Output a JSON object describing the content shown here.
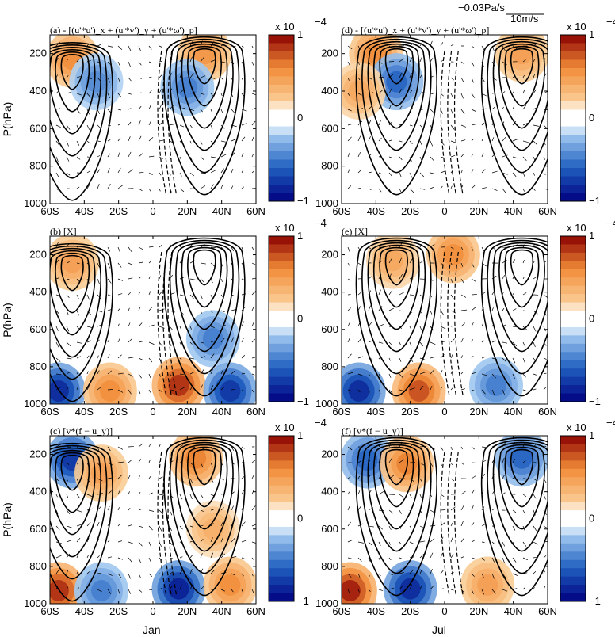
{
  "figure": {
    "y_axis_label": "P(hPa)",
    "colorbar_exponent": "x 10",
    "colorbar_exponent_power": "−4",
    "colorbar_ticks": [
      "1",
      "0",
      "−1"
    ],
    "x_ticks": [
      "60S",
      "40S",
      "20S",
      "0",
      "20N",
      "40N",
      "60N"
    ],
    "y_ticks": [
      "200",
      "400",
      "600",
      "800",
      "1000"
    ],
    "column_labels": [
      "Jan",
      "Jul"
    ],
    "reference_vectors": [
      "−0.03Pa/s",
      "10m/s"
    ],
    "colors": {
      "red": "#8b0000",
      "orange": "#f28c38",
      "white": "#ffffff",
      "blue": "#1f5fbf",
      "navy": "#00007f"
    }
  },
  "chart_data": [
    {
      "id": "a",
      "type": "heatmap",
      "title": "(a) - [(u'*u')_x + (u'*v')_y + (u'*ω')_p]",
      "month": "Jan",
      "xlim": [
        -60,
        60
      ],
      "ylim": [
        1000,
        100
      ],
      "clim": [
        -1,
        1
      ],
      "cells": [
        {
          "lat": -47,
          "p": 230,
          "v": 0.6
        },
        {
          "lat": -33,
          "p": 350,
          "v": -0.45
        },
        {
          "lat": 30,
          "p": 200,
          "v": 0.55
        },
        {
          "lat": 20,
          "p": 380,
          "v": -0.5
        }
      ],
      "jet_centers": [
        {
          "lat": -47,
          "p": 230
        },
        {
          "lat": 30,
          "p": 200
        }
      ]
    },
    {
      "id": "b",
      "type": "heatmap",
      "title": "(b) [X]",
      "month": "Jan",
      "xlim": [
        -60,
        60
      ],
      "ylim": [
        1000,
        100
      ],
      "clim": [
        -1,
        1
      ],
      "cells": [
        {
          "lat": -47,
          "p": 240,
          "v": 0.5
        },
        {
          "lat": 35,
          "p": 650,
          "v": -0.5
        },
        {
          "lat": -55,
          "p": 930,
          "v": -0.85
        },
        {
          "lat": -25,
          "p": 930,
          "v": 0.6
        },
        {
          "lat": 15,
          "p": 900,
          "v": 0.9
        },
        {
          "lat": 45,
          "p": 930,
          "v": -0.8
        }
      ],
      "jet_centers": [
        {
          "lat": -47,
          "p": 230
        },
        {
          "lat": 30,
          "p": 200
        }
      ]
    },
    {
      "id": "c",
      "type": "heatmap",
      "title": "(c) [v̄*(f − ū_y)]",
      "month": "Jan",
      "xlim": [
        -60,
        60
      ],
      "ylim": [
        1000,
        100
      ],
      "clim": [
        -1,
        1
      ],
      "cells": [
        {
          "lat": -47,
          "p": 230,
          "v": -0.8
        },
        {
          "lat": -30,
          "p": 300,
          "v": 0.5
        },
        {
          "lat": 25,
          "p": 220,
          "v": 0.65
        },
        {
          "lat": 35,
          "p": 600,
          "v": 0.4
        },
        {
          "lat": -55,
          "p": 930,
          "v": 0.9
        },
        {
          "lat": -30,
          "p": 930,
          "v": -0.5
        },
        {
          "lat": 15,
          "p": 920,
          "v": -0.9
        },
        {
          "lat": 45,
          "p": 900,
          "v": 0.6
        }
      ],
      "jet_centers": [
        {
          "lat": -47,
          "p": 230
        },
        {
          "lat": 30,
          "p": 200
        }
      ]
    },
    {
      "id": "d",
      "type": "heatmap",
      "title": "(d) - [(u'*u')_x + (u'*v')_y + (u'*ω')_p]",
      "month": "Jul",
      "xlim": [
        -60,
        60
      ],
      "ylim": [
        1000,
        100
      ],
      "clim": [
        -1,
        1
      ],
      "cells": [
        {
          "lat": -40,
          "p": 200,
          "v": 0.6
        },
        {
          "lat": -28,
          "p": 350,
          "v": -0.6
        },
        {
          "lat": -50,
          "p": 400,
          "v": 0.45
        },
        {
          "lat": 45,
          "p": 200,
          "v": 0.5
        }
      ],
      "jet_centers": [
        {
          "lat": -28,
          "p": 200
        },
        {
          "lat": 45,
          "p": 200
        }
      ]
    },
    {
      "id": "e",
      "type": "heatmap",
      "title": "(e) [X]",
      "month": "Jul",
      "xlim": [
        -60,
        60
      ],
      "ylim": [
        1000,
        100
      ],
      "clim": [
        -1,
        1
      ],
      "cells": [
        {
          "lat": -30,
          "p": 230,
          "v": 0.45
        },
        {
          "lat": 5,
          "p": 200,
          "v": 0.6
        },
        {
          "lat": -50,
          "p": 930,
          "v": -0.85
        },
        {
          "lat": -15,
          "p": 930,
          "v": 0.8
        },
        {
          "lat": 30,
          "p": 900,
          "v": -0.5
        }
      ],
      "jet_centers": [
        {
          "lat": -28,
          "p": 200
        },
        {
          "lat": 45,
          "p": 200
        }
      ]
    },
    {
      "id": "f",
      "type": "heatmap",
      "title": "(f) [v̄*(f − ū_y)]",
      "month": "Jul",
      "xlim": [
        -60,
        60
      ],
      "ylim": [
        1000,
        100
      ],
      "clim": [
        -1,
        1
      ],
      "cells": [
        {
          "lat": -45,
          "p": 230,
          "v": -0.6
        },
        {
          "lat": -22,
          "p": 250,
          "v": 0.65
        },
        {
          "lat": 45,
          "p": 220,
          "v": -0.6
        },
        {
          "lat": -55,
          "p": 930,
          "v": 0.95
        },
        {
          "lat": -20,
          "p": 920,
          "v": -0.85
        },
        {
          "lat": 25,
          "p": 900,
          "v": 0.5
        }
      ],
      "jet_centers": [
        {
          "lat": -28,
          "p": 200
        },
        {
          "lat": 45,
          "p": 200
        }
      ]
    }
  ]
}
